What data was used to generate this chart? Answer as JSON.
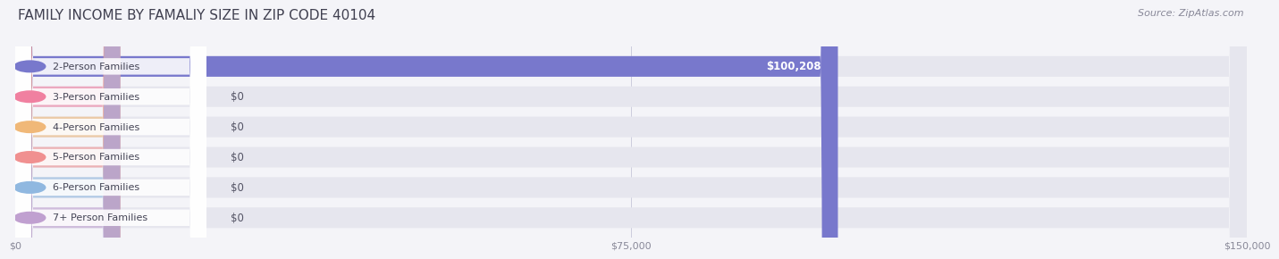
{
  "title": "FAMILY INCOME BY FAMALIY SIZE IN ZIP CODE 40104",
  "source_text": "Source: ZipAtlas.com",
  "categories": [
    "2-Person Families",
    "3-Person Families",
    "4-Person Families",
    "5-Person Families",
    "6-Person Families",
    "7+ Person Families"
  ],
  "values": [
    100208,
    0,
    0,
    0,
    0,
    0
  ],
  "bar_colors": [
    "#7878cc",
    "#f080a0",
    "#f0b878",
    "#f09090",
    "#90b8e0",
    "#c0a0d0"
  ],
  "xlim": [
    0,
    150000
  ],
  "xticks": [
    0,
    75000,
    150000
  ],
  "xtick_labels": [
    "$0",
    "$75,000",
    "$150,000"
  ],
  "value_labels": [
    "$100,208",
    "$0",
    "$0",
    "$0",
    "$0",
    "$0"
  ],
  "background_color": "#f4f4f8",
  "bar_bg_color": "#e6e6ee",
  "label_pill_color": "#ffffff",
  "title_color": "#404050",
  "source_color": "#888898",
  "tick_color": "#888898",
  "value_label_color_inside": "#ffffff",
  "value_label_color_outside": "#555566",
  "title_fontsize": 11,
  "source_fontsize": 8,
  "bar_label_fontsize": 8,
  "value_label_fontsize": 8.5
}
